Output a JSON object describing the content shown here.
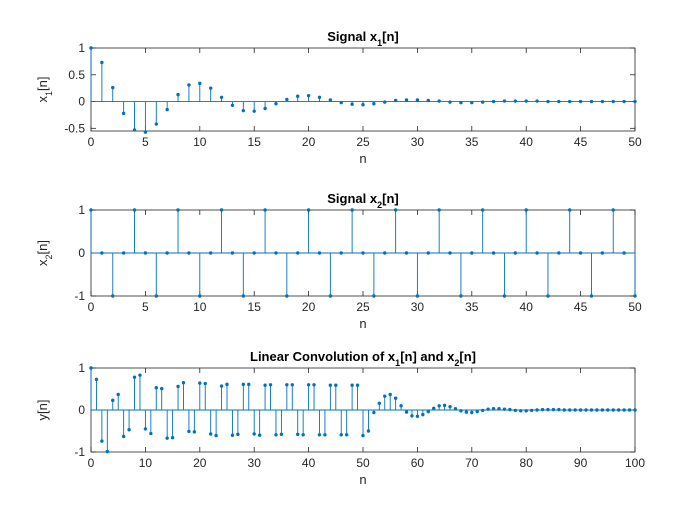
{
  "figure": {
    "background": "#ffffff"
  },
  "chart_data": [
    {
      "type": "stem",
      "title": {
        "main": "Signal x",
        "sub": "1",
        "tail": "[n]"
      },
      "ylabel": {
        "main": "x",
        "sub": "1",
        "tail": "[n]"
      },
      "xlabel": "n",
      "xlim": [
        0,
        50
      ],
      "ylim": [
        -0.55,
        1.0
      ],
      "xticks": [
        0,
        5,
        10,
        15,
        20,
        25,
        30,
        35,
        40,
        45,
        50
      ],
      "yticks": [
        -0.5,
        0,
        0.5,
        1
      ],
      "ytick_labels": [
        "-0.5",
        "0",
        "0.5",
        "1"
      ],
      "color": "#0072bd",
      "grid": false,
      "x": [
        0,
        1,
        2,
        3,
        4,
        5,
        6,
        7,
        8,
        9,
        10,
        11,
        12,
        13,
        14,
        15,
        16,
        17,
        18,
        19,
        20,
        21,
        22,
        23,
        24,
        25,
        26,
        27,
        28,
        29,
        30,
        31,
        32,
        33,
        34,
        35,
        36,
        37,
        38,
        39,
        40,
        41,
        42,
        43,
        44,
        45,
        46,
        47,
        48,
        49,
        50
      ],
      "y": [
        1.0,
        0.73,
        0.26,
        -0.22,
        -0.53,
        -0.57,
        -0.42,
        -0.15,
        0.13,
        0.31,
        0.34,
        0.25,
        0.08,
        -0.07,
        -0.17,
        -0.18,
        -0.13,
        -0.04,
        0.04,
        0.1,
        0.11,
        0.08,
        0.03,
        -0.02,
        -0.05,
        -0.06,
        -0.04,
        -0.01,
        0.02,
        0.03,
        0.03,
        0.02,
        0.01,
        -0.01,
        -0.02,
        -0.02,
        -0.01,
        0.0,
        0.01,
        0.01,
        0.01,
        0.01,
        0.0,
        0.0,
        0.0,
        0.0,
        0.0,
        0.0,
        0.0,
        0.0,
        0.0
      ]
    },
    {
      "type": "stem",
      "title": {
        "main": "Signal x",
        "sub": "2",
        "tail": "[n]"
      },
      "ylabel": {
        "main": "x",
        "sub": "2",
        "tail": "[n]"
      },
      "xlabel": "n",
      "xlim": [
        0,
        50
      ],
      "ylim": [
        -1,
        1
      ],
      "xticks": [
        0,
        5,
        10,
        15,
        20,
        25,
        30,
        35,
        40,
        45,
        50
      ],
      "yticks": [
        -1,
        0,
        1
      ],
      "ytick_labels": [
        "-1",
        "0",
        "1"
      ],
      "color": "#0072bd",
      "grid": false,
      "x": [
        0,
        1,
        2,
        3,
        4,
        5,
        6,
        7,
        8,
        9,
        10,
        11,
        12,
        13,
        14,
        15,
        16,
        17,
        18,
        19,
        20,
        21,
        22,
        23,
        24,
        25,
        26,
        27,
        28,
        29,
        30,
        31,
        32,
        33,
        34,
        35,
        36,
        37,
        38,
        39,
        40,
        41,
        42,
        43,
        44,
        45,
        46,
        47,
        48,
        49,
        50
      ],
      "y": [
        1,
        0,
        -1,
        0,
        1,
        0,
        -1,
        0,
        1,
        0,
        -1,
        0,
        1,
        0,
        -1,
        0,
        1,
        0,
        -1,
        0,
        1,
        0,
        -1,
        0,
        1,
        0,
        -1,
        0,
        1,
        0,
        -1,
        0,
        1,
        0,
        -1,
        0,
        1,
        0,
        -1,
        0,
        1,
        0,
        -1,
        0,
        1,
        0,
        -1,
        0,
        1,
        0,
        -1
      ]
    },
    {
      "type": "stem",
      "title": {
        "main": "Linear Convolution of x",
        "sub": "1",
        "mid": "[n] and x",
        "sub2": "2",
        "tail": "[n]"
      },
      "ylabel": {
        "main": "y[n]"
      },
      "xlabel": "n",
      "xlim": [
        0,
        100
      ],
      "ylim": [
        -1,
        1
      ],
      "xticks": [
        0,
        10,
        20,
        30,
        40,
        50,
        60,
        70,
        80,
        90,
        100
      ],
      "yticks": [
        -1,
        0,
        1
      ],
      "ytick_labels": [
        "-1",
        "0",
        "1"
      ],
      "color": "#0072bd",
      "grid": false,
      "x": [
        0,
        1,
        2,
        3,
        4,
        5,
        6,
        7,
        8,
        9,
        10,
        11,
        12,
        13,
        14,
        15,
        16,
        17,
        18,
        19,
        20,
        21,
        22,
        23,
        24,
        25,
        26,
        27,
        28,
        29,
        30,
        31,
        32,
        33,
        34,
        35,
        36,
        37,
        38,
        39,
        40,
        41,
        42,
        43,
        44,
        45,
        46,
        47,
        48,
        49,
        50,
        51,
        52,
        53,
        54,
        55,
        56,
        57,
        58,
        59,
        60,
        61,
        62,
        63,
        64,
        65,
        66,
        67,
        68,
        69,
        70,
        71,
        72,
        73,
        74,
        75,
        76,
        77,
        78,
        79,
        80,
        81,
        82,
        83,
        84,
        85,
        86,
        87,
        88,
        89,
        90,
        91,
        92,
        93,
        94,
        95,
        96,
        97,
        98,
        99,
        100
      ],
      "y": [
        1.0,
        0.73,
        -0.74,
        -0.99,
        0.23,
        0.37,
        -0.63,
        -0.47,
        0.78,
        0.83,
        -0.45,
        -0.56,
        0.53,
        0.51,
        -0.67,
        -0.66,
        0.56,
        0.65,
        -0.51,
        -0.52,
        0.64,
        0.63,
        -0.57,
        -0.61,
        0.57,
        0.61,
        -0.6,
        -0.58,
        0.61,
        0.61,
        -0.57,
        -0.6,
        0.59,
        0.6,
        -0.59,
        -0.58,
        0.6,
        0.6,
        -0.58,
        -0.59,
        0.6,
        0.6,
        -0.59,
        -0.59,
        0.59,
        0.59,
        -0.59,
        -0.59,
        0.59,
        0.59,
        -0.61,
        -0.5,
        -0.06,
        0.16,
        0.33,
        0.37,
        0.28,
        0.1,
        -0.05,
        -0.14,
        -0.15,
        -0.11,
        -0.04,
        0.04,
        0.1,
        0.11,
        0.08,
        0.03,
        -0.02,
        -0.05,
        -0.06,
        -0.04,
        -0.01,
        0.02,
        0.03,
        0.03,
        0.02,
        0.01,
        -0.01,
        -0.02,
        -0.02,
        -0.01,
        0.0,
        0.01,
        0.01,
        0.01,
        0.01,
        0.0,
        0.0,
        0.0,
        0.0,
        0.0,
        0.0,
        0.0,
        0.0,
        0.0,
        0.0,
        0.0,
        0.0,
        0.0,
        0.0
      ]
    }
  ]
}
